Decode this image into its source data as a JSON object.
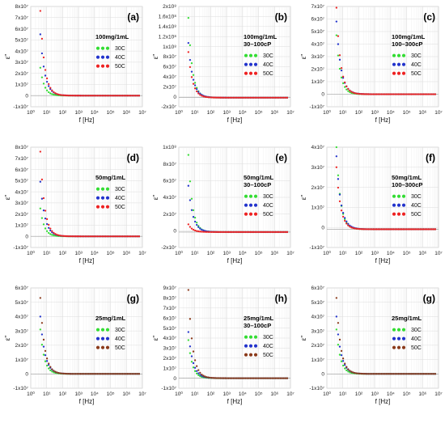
{
  "colors": {
    "30C": "#33dd33",
    "40C": "#2233cc",
    "50C": "#ee2222",
    "50C_alt": "#8b3a1a",
    "grid": "#dddddd",
    "axis": "#444444"
  },
  "chart_data": [
    {
      "type": "scatter",
      "panel_label": "(a)",
      "xlabel": "f [Hz]",
      "ylabel": "ε\"",
      "xscale": "log",
      "grid": true,
      "legend_title": [
        "100mg/1mL"
      ],
      "legend_placement": "top-right",
      "yticks": [
        "-1x10⁷",
        "0",
        "1x10⁷",
        "2x10⁷",
        "3x10⁷",
        "4x10⁷",
        "5x10⁷",
        "6x10⁷",
        "7x10⁷",
        "8x10⁷"
      ],
      "ylim": [
        -10000000.0,
        80000000.0
      ],
      "xticks": [
        "10⁰",
        "10¹",
        "10²",
        "10³",
        "10⁴",
        "10⁵",
        "10⁶",
        "10⁷"
      ],
      "xlim": [
        0,
        7
      ],
      "series": [
        {
          "name": "30C",
          "color": "#33dd33",
          "y0": 25000000.0
        },
        {
          "name": "40C",
          "color": "#2233cc",
          "y0": 55000000.0
        },
        {
          "name": "50C",
          "color": "#ee2222",
          "y0": 76000000.0
        }
      ]
    },
    {
      "type": "scatter",
      "panel_label": "(b)",
      "xlabel": "f [Hz]",
      "ylabel": "ε\"",
      "xscale": "log",
      "grid": true,
      "legend_title": [
        "100mg/1mL",
        "30–100cP"
      ],
      "legend_placement": "top-right",
      "yticks": [
        "-2x10⁷",
        "0",
        "2x10⁷",
        "4x10⁷",
        "6x10⁷",
        "8x10⁷",
        "1x10⁸",
        "1.2x10⁸",
        "1.4x10⁸",
        "1.6x10⁸",
        "2x10⁸"
      ],
      "ylim": [
        -20000000.0,
        200000000.0
      ],
      "xticks": [
        "10⁰",
        "10¹",
        "10²",
        "10³",
        "10⁴",
        "10⁵",
        "10⁶",
        "10⁷"
      ],
      "xlim": [
        0,
        7
      ],
      "series": [
        {
          "name": "30C",
          "color": "#33dd33",
          "y0": 175000000.0
        },
        {
          "name": "40C",
          "color": "#2233cc",
          "y0": 120000000.0
        },
        {
          "name": "50C",
          "color": "#ee2222",
          "y0": 100000000.0
        }
      ]
    },
    {
      "type": "scatter",
      "panel_label": "(c)",
      "xlabel": "f [Hz]",
      "ylabel": "ε\"",
      "xscale": "log",
      "grid": true,
      "legend_title": [
        "100mg/1mL",
        "100–300cP"
      ],
      "legend_placement": "top-right",
      "yticks": [
        "-1x10⁷",
        "0",
        "1x10⁷",
        "2x10⁷",
        "3x10⁷",
        "4x10⁷",
        "5x10⁷",
        "6x10⁷",
        "7x10⁷"
      ],
      "ylim": [
        -10000000.0,
        70000000.0
      ],
      "xticks": [
        "10⁰",
        "10¹",
        "10²",
        "10³",
        "10⁴",
        "10⁵",
        "10⁶",
        "10⁷"
      ],
      "xlim": [
        0,
        7
      ],
      "series": [
        {
          "name": "30C",
          "color": "#33dd33",
          "y0": 47000000.0
        },
        {
          "name": "40C",
          "color": "#2233cc",
          "y0": 58000000.0
        },
        {
          "name": "50C",
          "color": "#ee2222",
          "y0": 69000000.0
        }
      ]
    },
    {
      "type": "scatter",
      "panel_label": "(d)",
      "xlabel": "f [Hz]",
      "ylabel": "ε\"",
      "xscale": "log",
      "grid": true,
      "legend_title": [
        "50mg/1mL"
      ],
      "legend_placement": "top-right",
      "yticks": [
        "-1x10⁷",
        "0",
        "1x10⁷",
        "2x10⁷",
        "3x10⁷",
        "4x10⁷",
        "5x10⁷",
        "6x10⁷",
        "7x10⁷",
        "8x10⁷"
      ],
      "ylim": [
        -10000000.0,
        80000000.0
      ],
      "xticks": [
        "10⁰",
        "10¹",
        "10²",
        "10³",
        "10⁴",
        "10⁵",
        "10⁶",
        "10⁷"
      ],
      "xlim": [
        0,
        7
      ],
      "series": [
        {
          "name": "30C",
          "color": "#33dd33",
          "y0": 25000000.0
        },
        {
          "name": "40C",
          "color": "#2233cc",
          "y0": 49000000.0
        },
        {
          "name": "50C",
          "color": "#ee2222",
          "y0": 76000000.0
        }
      ]
    },
    {
      "type": "scatter",
      "panel_label": "(e)",
      "xlabel": "f [Hz]",
      "ylabel": "ε\"",
      "xscale": "log",
      "grid": true,
      "legend_title": [
        "50mg/1mL",
        "30–100cP"
      ],
      "legend_placement": "top-right",
      "yticks": [
        "-2x10⁷",
        "0",
        "2x10⁷",
        "4x10⁷",
        "6x10⁷",
        "8x10⁷",
        "1x10⁸"
      ],
      "ylim": [
        -20000000.0,
        110000000.0
      ],
      "xticks": [
        "10⁰",
        "10¹",
        "10²",
        "10³",
        "10⁴",
        "10⁵",
        "10⁶",
        "10⁷"
      ],
      "xlim": [
        0,
        7
      ],
      "series": [
        {
          "name": "30C",
          "color": "#33dd33",
          "y0": 100000000.0
        },
        {
          "name": "40C",
          "color": "#2233cc",
          "y0": 60000000.0
        },
        {
          "name": "50C",
          "color": "#ee2222",
          "y0": 10000000.0
        }
      ]
    },
    {
      "type": "scatter",
      "panel_label": "(f)",
      "xlabel": "f [Hz]",
      "ylabel": "ε\"",
      "xscale": "log",
      "grid": true,
      "legend_title": [
        "50mg/1mL",
        "100–300cP"
      ],
      "legend_placement": "top-right",
      "yticks": [
        "-1x10⁷",
        "0",
        "1x10⁷",
        "2x10⁷",
        "3x10⁷",
        "4x10⁷"
      ],
      "ylim": [
        -10000000.0,
        45000000.0
      ],
      "xticks": [
        "10⁰",
        "10¹",
        "10²",
        "10³",
        "10⁴",
        "10⁵",
        "10⁶",
        "10⁷"
      ],
      "xlim": [
        0,
        7
      ],
      "series": [
        {
          "name": "30C",
          "color": "#33dd33",
          "y0": 45000000.0
        },
        {
          "name": "40C",
          "color": "#2233cc",
          "y0": 40000000.0
        },
        {
          "name": "50C",
          "color": "#ee2222",
          "y0": 34000000.0
        }
      ]
    },
    {
      "type": "scatter",
      "panel_label": "(g)",
      "xlabel": "f [Hz]",
      "ylabel": "ε\"",
      "xscale": "log",
      "grid": true,
      "legend_title": [
        "25mg/1mL"
      ],
      "legend_placement": "top-right",
      "yticks": [
        "-1x10⁷",
        "0",
        "1x10⁷",
        "2x10⁷",
        "3x10⁷",
        "4x10⁷",
        "5x10⁷",
        "6x10⁷"
      ],
      "ylim": [
        -10000000.0,
        60000000.0
      ],
      "xticks": [
        "10⁰",
        "10¹",
        "10²",
        "10³",
        "10⁴",
        "10⁵",
        "10⁶",
        "10⁷"
      ],
      "xlim": [
        0,
        7
      ],
      "series": [
        {
          "name": "30C",
          "color": "#33dd33",
          "y0": 31000000.0
        },
        {
          "name": "40C",
          "color": "#2233cc",
          "y0": 40000000.0
        },
        {
          "name": "50C",
          "color": "#8b3a1a",
          "y0": 53000000.0
        }
      ]
    },
    {
      "type": "scatter",
      "panel_label": "(h)",
      "xlabel": "f [Hz]",
      "ylabel": "ε\"",
      "xscale": "log",
      "grid": true,
      "legend_title": [
        "25mg/1mL",
        "30–100cP"
      ],
      "legend_placement": "top-right",
      "yticks": [
        "-1x10⁷",
        "0",
        "1x10⁷",
        "2x10⁷",
        "3x10⁷",
        "4x10⁷",
        "5x10⁷",
        "6x10⁷",
        "7x10⁷",
        "8x10⁷",
        "9x10⁷"
      ],
      "ylim": [
        -10000000.0,
        90000000.0
      ],
      "xticks": [
        "10⁰",
        "10¹",
        "10²",
        "10³",
        "10⁴",
        "10⁵",
        "10⁶",
        "10⁷"
      ],
      "xlim": [
        0,
        7
      ],
      "series": [
        {
          "name": "30C",
          "color": "#33dd33",
          "y0": 38000000.0
        },
        {
          "name": "40C",
          "color": "#2233cc",
          "y0": 46000000.0
        },
        {
          "name": "50C",
          "color": "#8b3a1a",
          "y0": 88000000.0
        }
      ]
    },
    {
      "type": "scatter",
      "panel_label": "(g)",
      "xlabel": "f [Hz]",
      "ylabel": "ε\"",
      "xscale": "log",
      "grid": true,
      "legend_title": [
        "25mg/1mL"
      ],
      "legend_placement": "top-right",
      "yticks": [
        "-1x10⁷",
        "0",
        "1x10⁷",
        "2x10⁷",
        "3x10⁷",
        "4x10⁷",
        "5x10⁷",
        "6x10⁷"
      ],
      "ylim": [
        -10000000.0,
        60000000.0
      ],
      "xticks": [
        "10⁰",
        "10¹",
        "10²",
        "10³",
        "10⁴",
        "10⁵",
        "10⁶",
        "10⁷"
      ],
      "xlim": [
        0,
        7
      ],
      "series": [
        {
          "name": "30C",
          "color": "#33dd33",
          "y0": 31000000.0
        },
        {
          "name": "40C",
          "color": "#2233cc",
          "y0": 40000000.0
        },
        {
          "name": "50C",
          "color": "#8b3a1a",
          "y0": 53000000.0
        }
      ]
    }
  ]
}
